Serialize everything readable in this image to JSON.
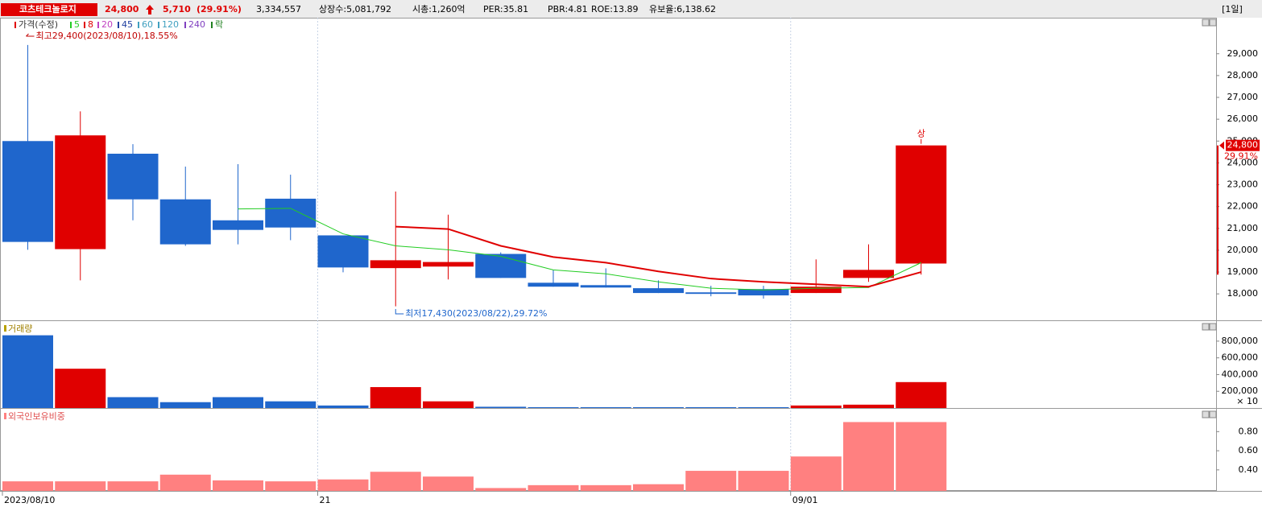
{
  "header": {
    "name": "코츠테크놀로지",
    "price": "24,800",
    "change": "5,710",
    "change_pct": "(29.91%)",
    "volume": "3,334,557",
    "shares": "상장수:5,081,792",
    "market_cap": "시총:1,260억",
    "per": "PER:35.81",
    "pbr": "PBR:4.81",
    "roe": "ROE:13.89",
    "reserve": "유보율:6,138.62",
    "period": "[1일]",
    "last_change": "29.91%"
  },
  "chart_data": [
    {
      "type": "candlestick",
      "legend": [
        "가격(수정)",
        "5",
        "8",
        "20",
        "45",
        "60",
        "120",
        "240",
        "락"
      ],
      "categories": [
        "2023/08/10",
        null,
        null,
        null,
        null,
        null,
        "21",
        null,
        null,
        null,
        null,
        null,
        null,
        null,
        null,
        "09/01",
        null,
        null
      ],
      "open": [
        25000,
        20050,
        24420,
        22330,
        21370,
        22360,
        20680,
        19180,
        19250,
        19830,
        18510,
        18400,
        18260,
        18070,
        18220,
        18040,
        18730,
        19390
      ],
      "high": [
        29400,
        26360,
        24860,
        23830,
        23940,
        23460,
        20680,
        22690,
        21630,
        19900,
        19100,
        19170,
        18620,
        18370,
        18370,
        19580,
        20270,
        24800
      ],
      "low": [
        20020,
        18620,
        21370,
        20200,
        20270,
        20460,
        18990,
        17430,
        18660,
        18730,
        18330,
        18290,
        18040,
        17890,
        17780,
        18040,
        18550,
        18880
      ],
      "close": [
        20380,
        25260,
        22330,
        20270,
        20930,
        21040,
        19210,
        19540,
        19460,
        18730,
        18330,
        18290,
        18040,
        18000,
        17930,
        18330,
        19100,
        24800
      ],
      "up_color": "#e00000",
      "down_color": "#1f66cc",
      "series": [
        {
          "name": "5",
          "color": "#22cc22",
          "values": [
            null,
            null,
            null,
            null,
            21890,
            21920,
            20750,
            20200,
            20020,
            19720,
            19100,
            18920,
            18550,
            18260,
            18180,
            18260,
            18290,
            19430
          ]
        },
        {
          "name": "8",
          "color": "#e00000",
          "values": [
            null,
            null,
            null,
            null,
            null,
            null,
            null,
            21080,
            20970,
            20200,
            19690,
            19430,
            19030,
            18700,
            18550,
            18440,
            18330,
            19000
          ]
        }
      ],
      "annotations": [
        "최고29,400(2023/08/10),18.55%",
        "최저17,430(2023/08/22),29.72%",
        "상"
      ],
      "ylim": [
        16790,
        30650
      ],
      "yticks": [
        {
          "value": 18000,
          "label": "18,000"
        },
        {
          "value": 19000,
          "label": "19,000"
        },
        {
          "value": 20000,
          "label": "20,000"
        },
        {
          "value": 21000,
          "label": "21,000"
        },
        {
          "value": 22000,
          "label": "22,000"
        },
        {
          "value": 23000,
          "label": "23,000"
        },
        {
          "value": 24000,
          "label": "24,000"
        },
        {
          "value": 25000,
          "label": "25,000"
        },
        {
          "value": 26000,
          "label": "26,000"
        },
        {
          "value": 27000,
          "label": "27,000"
        },
        {
          "value": 28000,
          "label": "28,000"
        },
        {
          "value": 29000,
          "label": "29,000"
        }
      ]
    },
    {
      "type": "bar",
      "title": "거래량",
      "unit_note": "× 10",
      "values": [
        870000,
        470000,
        130000,
        70000,
        130000,
        80000,
        30000,
        250000,
        80000,
        15000,
        10000,
        10000,
        10000,
        10000,
        10000,
        30000,
        40000,
        310000
      ],
      "color_up": "#e00000",
      "color_down": "#1f66cc",
      "ylim": [
        0,
        1030000
      ],
      "yticks": [
        {
          "value": 200000,
          "label": "200,000"
        },
        {
          "value": 400000,
          "label": "400,000"
        },
        {
          "value": 600000,
          "label": "600,000"
        },
        {
          "value": 800000,
          "label": "800,000"
        }
      ]
    },
    {
      "type": "bar",
      "title": "외국인보유비중",
      "color": "#ff8080",
      "values": [
        0.28,
        0.28,
        0.28,
        0.35,
        0.29,
        0.28,
        0.3,
        0.38,
        0.33,
        0.21,
        0.24,
        0.24,
        0.25,
        0.39,
        0.39,
        0.54,
        0.9,
        0.9
      ],
      "ylim": [
        0.18,
        1.03
      ],
      "yticks": [
        {
          "value": 0.4,
          "label": "0.40"
        },
        {
          "value": 0.6,
          "label": "0.60"
        },
        {
          "value": 0.8,
          "label": "0.80"
        }
      ]
    }
  ]
}
